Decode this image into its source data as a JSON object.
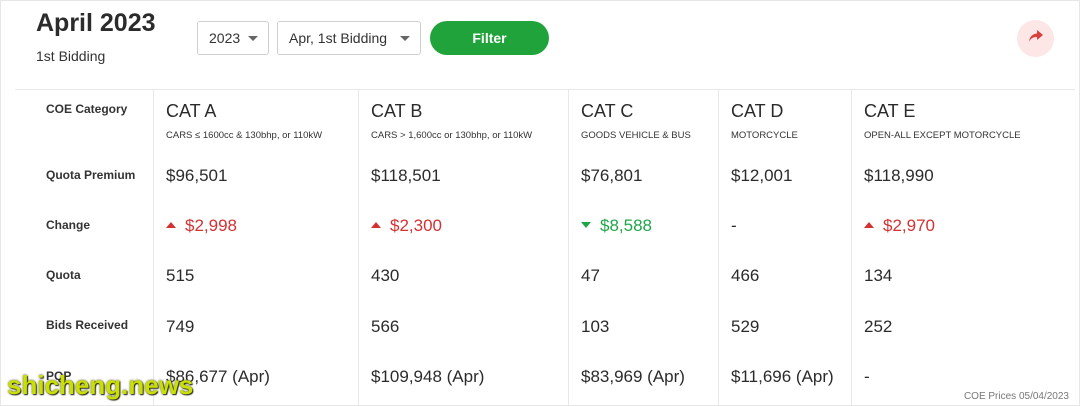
{
  "header": {
    "title": "April 2023",
    "subtitle": "1st Bidding",
    "year_select": "2023",
    "bidding_select": "Apr, 1st Bidding",
    "filter_label": "Filter",
    "share_icon": "share-arrow-icon"
  },
  "row_labels": {
    "category": "COE Category",
    "premium": "Quota Premium",
    "change": "Change",
    "quota": "Quota",
    "bids": "Bids Received",
    "pqp": "PQP"
  },
  "categories": [
    {
      "name": "CAT A",
      "desc": "CARS ≤ 1600cc & 130bhp, or 110kW",
      "premium": "$96,501",
      "change": "$2,998",
      "change_dir": "up",
      "quota": "515",
      "bids": "749",
      "pqp": "$86,677 (Apr)"
    },
    {
      "name": "CAT B",
      "desc": "CARS > 1,600cc or 130bhp, or 110kW",
      "premium": "$118,501",
      "change": "$2,300",
      "change_dir": "up",
      "quota": "430",
      "bids": "566",
      "pqp": "$109,948 (Apr)"
    },
    {
      "name": "CAT C",
      "desc": "GOODS VEHICLE & BUS",
      "premium": "$76,801",
      "change": "$8,588",
      "change_dir": "down",
      "quota": "47",
      "bids": "103",
      "pqp": "$83,969 (Apr)"
    },
    {
      "name": "CAT D",
      "desc": "MOTORCYCLE",
      "premium": "$12,001",
      "change": "-",
      "change_dir": "none",
      "quota": "466",
      "bids": "529",
      "pqp": "$11,696 (Apr)"
    },
    {
      "name": "CAT E",
      "desc": "OPEN-ALL EXCEPT MOTORCYCLE",
      "premium": "$118,990",
      "change": "$2,970",
      "change_dir": "up",
      "quota": "134",
      "bids": "252",
      "pqp": "-"
    }
  ],
  "colors": {
    "up": "#d23232",
    "down": "#1fa64a",
    "filter": "#21a33c"
  },
  "footnote": "COE Prices 05/04/2023",
  "watermark": "shicheng.news"
}
